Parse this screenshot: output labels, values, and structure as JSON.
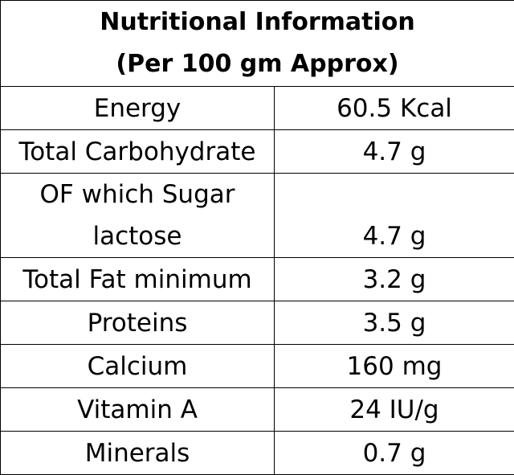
{
  "table": {
    "title_line1": "Nutritional Information",
    "title_line2": "(Per 100 gm Approx)",
    "rows": [
      {
        "name": "Energy",
        "value": "60.5 Kcal"
      },
      {
        "name": "Total Carbohydrate",
        "value": "4.7 g"
      },
      {
        "name_line1": "OF which Sugar",
        "name_line2": "lactose",
        "value": "4.7 g"
      },
      {
        "name": "Total Fat minimum",
        "value": "3.2 g"
      },
      {
        "name": "Proteins",
        "value": "3.5 g"
      },
      {
        "name": "Calcium",
        "value": "160 mg"
      },
      {
        "name": "Vitamin A",
        "value": "24 IU/g"
      },
      {
        "name": "Minerals",
        "value": "0.7 g"
      }
    ]
  }
}
